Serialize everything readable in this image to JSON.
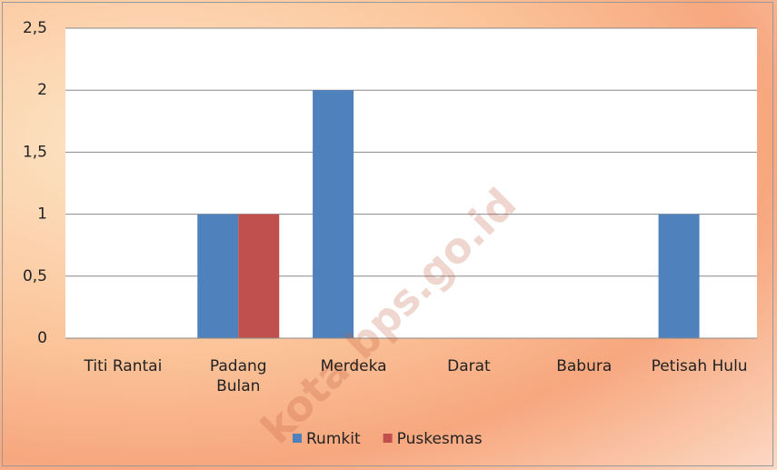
{
  "chart_data": {
    "type": "bar",
    "categories": [
      "Titi Rantai",
      "Padang Bulan",
      "Merdeka",
      "Darat",
      "Babura",
      "Petisah Hulu"
    ],
    "series": [
      {
        "name": "Rumkit",
        "color": "#4f81bd",
        "values": [
          0,
          1,
          2,
          0,
          0,
          1
        ]
      },
      {
        "name": "Puskesmas",
        "color": "#c0504d",
        "values": [
          0,
          1,
          0,
          0,
          0,
          0
        ]
      }
    ],
    "ylim": [
      0,
      2.5
    ],
    "yticks": [
      0,
      {
        "value": 0.5,
        "label": "0,5"
      },
      1,
      {
        "value": 1.5,
        "label": "1,5"
      },
      2,
      {
        "value": 2.5,
        "label": "2,5"
      }
    ],
    "grid": true,
    "legend": "bottom",
    "watermark": "kota.bps.go.id"
  }
}
